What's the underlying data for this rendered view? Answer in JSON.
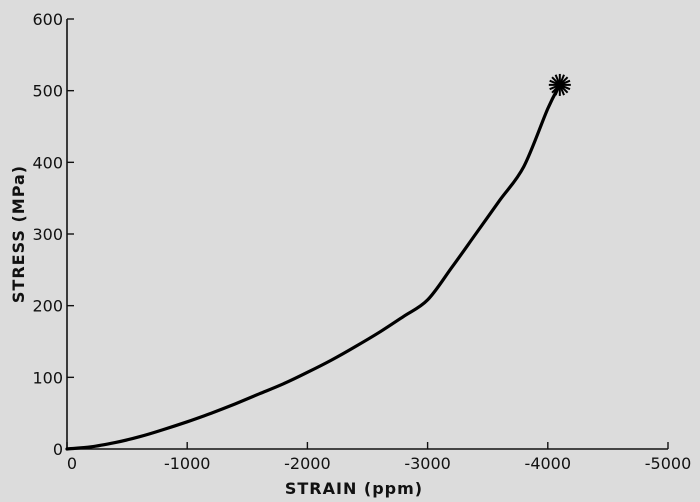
{
  "chart_data": {
    "type": "line",
    "title": "",
    "xlabel": "STRAIN  (ppm)",
    "ylabel": "STRESS (MPa)",
    "xlim": [
      0,
      -5000
    ],
    "ylim": [
      0,
      600
    ],
    "x_ticks": [
      0,
      -1000,
      -2000,
      -3000,
      -4000,
      -5000
    ],
    "x_tick_labels": [
      "0",
      "-1000",
      "-2000",
      "-3000",
      "-4000",
      "-5000"
    ],
    "y_ticks": [
      0,
      100,
      200,
      300,
      400,
      500,
      600
    ],
    "y_tick_labels": [
      "0",
      "100",
      "200",
      "300",
      "400",
      "500",
      "600"
    ],
    "grid": false,
    "series": [
      {
        "x": [
          0,
          -200,
          -400,
          -600,
          -800,
          -1000,
          -1200,
          -1400,
          -1600,
          -1800,
          -2000,
          -2200,
          -2400,
          -2600,
          -2800,
          -3000,
          -3200,
          -3400,
          -3600,
          -3800,
          -4000,
          -4100
        ],
        "y": [
          0,
          3,
          9,
          17,
          27,
          38,
          50,
          63,
          77,
          91,
          107,
          124,
          143,
          163,
          185,
          208,
          253,
          300,
          347,
          394,
          475,
          508
        ]
      }
    ],
    "end_marker": {
      "x": -4100,
      "y": 508,
      "symbol": "asterisk"
    }
  }
}
